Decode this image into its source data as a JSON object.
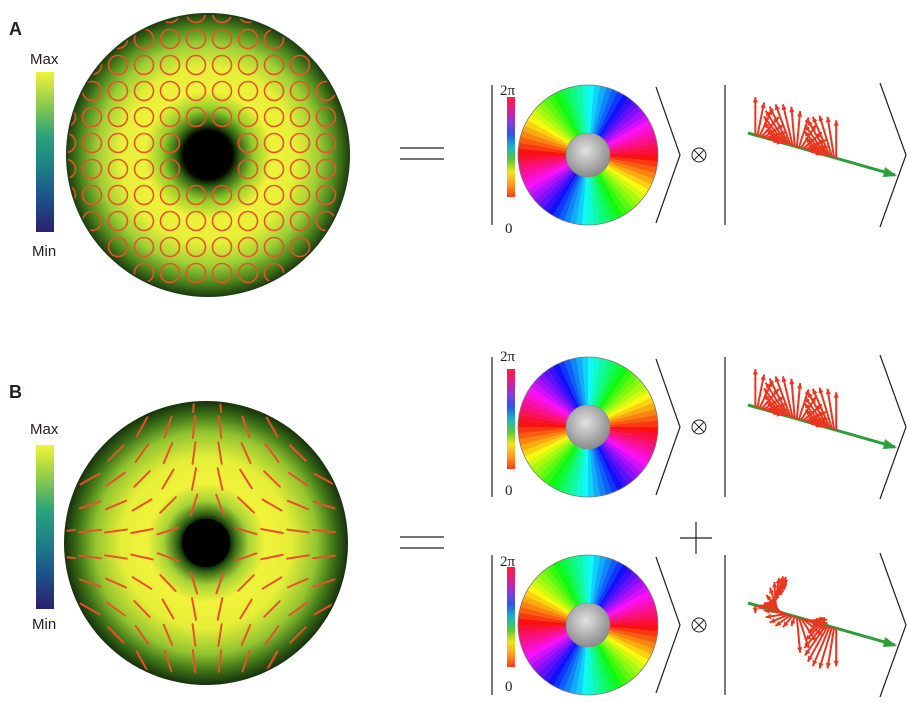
{
  "panels": [
    {
      "id": "A",
      "label": "A",
      "colorbar": {
        "max_label": "Max",
        "min_label": "Min"
      },
      "field_pattern": "circular",
      "equals_symbol": "=",
      "terms": [
        {
          "phase_label_top": "2π",
          "phase_label_bottom": "0",
          "winding": 1,
          "tensor_symbol": "⊗",
          "arrows": "upper"
        }
      ]
    },
    {
      "id": "B",
      "label": "B",
      "colorbar": {
        "max_label": "Max",
        "min_label": "Min"
      },
      "field_pattern": "hyperbolic",
      "equals_symbol": "=",
      "plus_symbol": "+",
      "terms": [
        {
          "phase_label_top": "2π",
          "phase_label_bottom": "0",
          "winding": -1,
          "tensor_symbol": "⊗",
          "arrows": "upper"
        },
        {
          "phase_label_top": "2π",
          "phase_label_bottom": "0",
          "winding": 1,
          "tensor_symbol": "⊗",
          "arrows": "lower"
        }
      ]
    }
  ],
  "colors": {
    "colormap": [
      "#2b1f6e",
      "#1d4f8a",
      "#1d7f88",
      "#2aa37a",
      "#8fcb4a",
      "#f2f33a"
    ],
    "field_lines": "#e8522a",
    "arrows": "#e8361f",
    "propagation_axis": "#2e9e3a",
    "core": "#000000",
    "text": "#231f20"
  }
}
